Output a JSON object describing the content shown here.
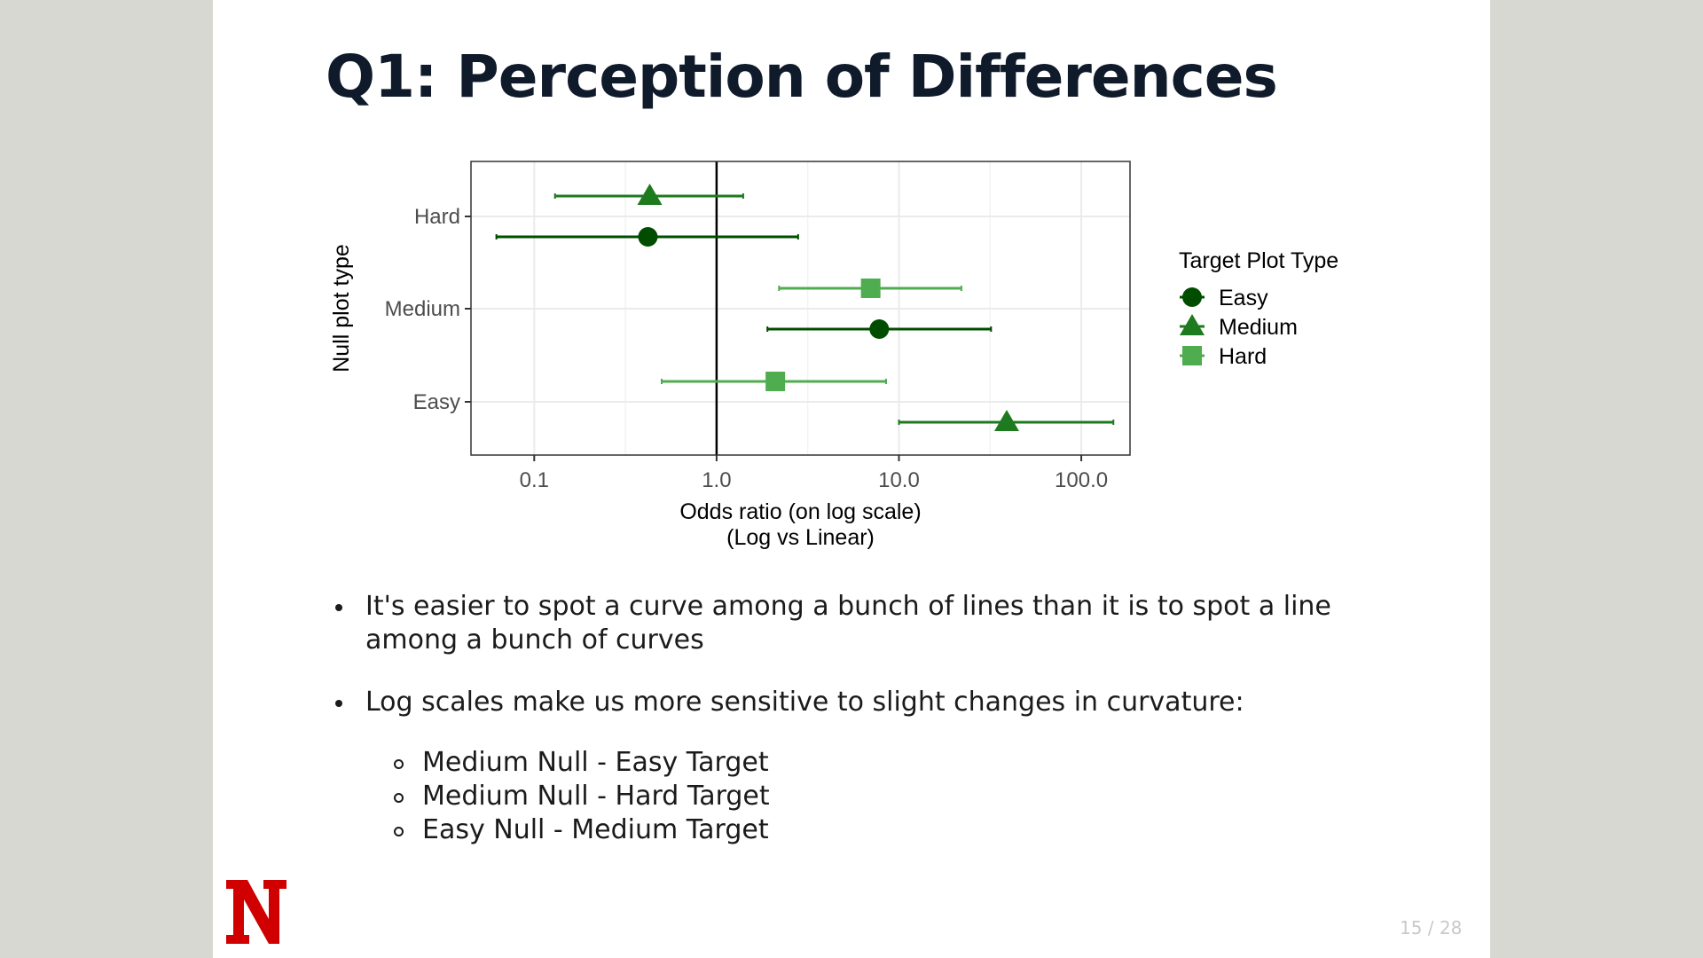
{
  "slide": {
    "title": "Q1: Perception of Differences",
    "page": "15 / 28"
  },
  "chart_data": {
    "type": "scatter",
    "subtype": "point-range (odds ratio estimates with intervals)",
    "title": "",
    "xlabel_lines": [
      "Odds ratio (on log scale)",
      "(Log vs Linear)"
    ],
    "ylabel": "Null plot type",
    "x_scale": "log",
    "xlim": [
      0.045,
      185
    ],
    "x_ticks": [
      0.1,
      1,
      10,
      100
    ],
    "x_tick_labels": [
      "0.1",
      "1.0",
      "10.0",
      "100.0"
    ],
    "y_categories": [
      "Easy",
      "Medium",
      "Hard"
    ],
    "reference_line_x": 1,
    "grid": true,
    "legend": {
      "title": "Target Plot Type",
      "position": "right",
      "entries": [
        {
          "label": "Easy",
          "shape": "circle",
          "color": "#004d00"
        },
        {
          "label": "Medium",
          "shape": "triangle",
          "color": "#1e7a1e"
        },
        {
          "label": "Hard",
          "shape": "square",
          "color": "#4fac4f"
        }
      ]
    },
    "series": [
      {
        "name": "Easy",
        "points": [
          {
            "null": "Medium",
            "estimate": 7.8,
            "lower": 1.9,
            "upper": 32
          },
          {
            "null": "Hard",
            "estimate": 0.42,
            "lower": 0.062,
            "upper": 2.8
          }
        ]
      },
      {
        "name": "Medium",
        "points": [
          {
            "null": "Easy",
            "estimate": 39,
            "lower": 10,
            "upper": 150
          },
          {
            "null": "Hard",
            "estimate": 0.43,
            "lower": 0.13,
            "upper": 1.4
          }
        ]
      },
      {
        "name": "Hard",
        "points": [
          {
            "null": "Easy",
            "estimate": 2.1,
            "lower": 0.5,
            "upper": 8.5
          },
          {
            "null": "Medium",
            "estimate": 7,
            "lower": 2.2,
            "upper": 22
          }
        ]
      }
    ]
  },
  "bullets": [
    {
      "text": "It's easier to spot a curve among a bunch of lines than it is to spot a line among a bunch of curves"
    },
    {
      "text": "Log scales make us more sensitive to slight changes in curvature:"
    }
  ],
  "sub_bullets": [
    {
      "text": "Medium Null - Easy Target"
    },
    {
      "text": "Medium Null - Hard Target"
    },
    {
      "text": "Easy Null - Medium Target"
    }
  ],
  "colors": {
    "logo_red": "#d00000",
    "easy": "#004d00",
    "medium": "#1e7a1e",
    "hard": "#4fac4f"
  }
}
